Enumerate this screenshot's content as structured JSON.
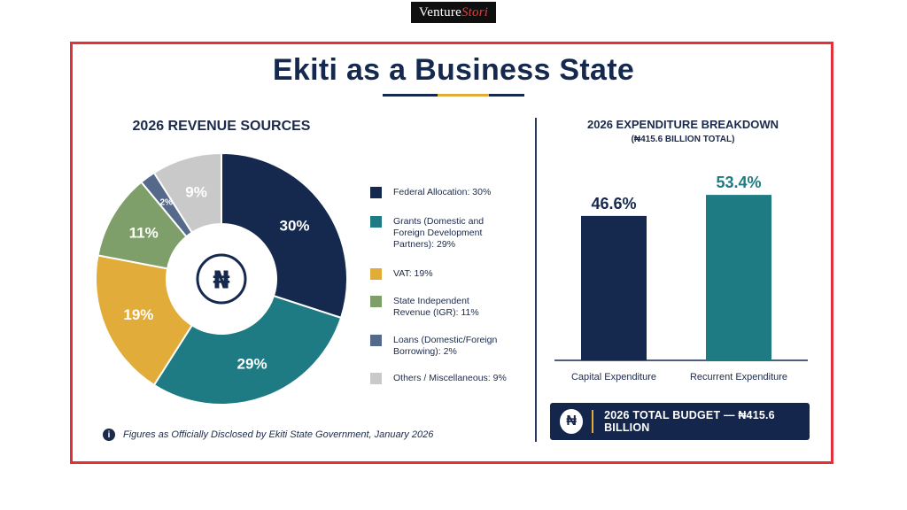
{
  "brand": {
    "name_plain": "Venture",
    "name_accent": "Stori"
  },
  "title": "Ekiti as a Business State",
  "colors": {
    "frame": "#e3313a",
    "navy": "#15294f",
    "teal": "#1e7b83",
    "gold": "#e2ac3a",
    "green": "#7f9f6a",
    "slate": "#556a8a",
    "grey": "#c9c9c9"
  },
  "revenue": {
    "heading": "2026 REVENUE SOURCES",
    "center_icon": "naira-icon",
    "center_symbol": "₦",
    "legend": [
      "Federal Allocation: 30%",
      "Grants (Domestic and Foreign Development Partners): 29%",
      "VAT: 19%",
      "State Independent Revenue (IGR): 11%",
      "Loans (Domestic/Foreign Borrowing): 2%",
      "Others / Miscellaneous: 9%"
    ]
  },
  "expenditure": {
    "heading": "2026 EXPENDITURE BREAKDOWN",
    "subheading": "(₦415.6 BILLION TOTAL)"
  },
  "note": {
    "icon": "info-icon",
    "icon_glyph": "i",
    "text": "Figures as Officially Disclosed by Ekiti State Government, January 2026"
  },
  "total_budget": {
    "icon": "naira-icon",
    "symbol": "₦",
    "text": "2026 TOTAL BUDGET — ₦415.6 BILLION"
  },
  "chart_data": [
    {
      "type": "pie",
      "title": "2026 REVENUE SOURCES",
      "donut": true,
      "categories": [
        "Federal Allocation",
        "Grants (Domestic and Foreign Development Partners)",
        "VAT",
        "State Independent Revenue (IGR)",
        "Loans (Domestic/Foreign Borrowing)",
        "Others / Miscellaneous"
      ],
      "values": [
        30,
        29,
        19,
        11,
        2,
        9
      ],
      "labels": [
        "30%",
        "29%",
        "19%",
        "11%",
        "2%",
        "9%"
      ],
      "colors": [
        "#15294f",
        "#1e7b83",
        "#e2ac3a",
        "#7f9f6a",
        "#556a8a",
        "#c9c9c9"
      ],
      "legend_position": "right"
    },
    {
      "type": "bar",
      "title": "2026 EXPENDITURE BREAKDOWN",
      "subtitle": "(₦415.6 BILLION TOTAL)",
      "categories": [
        "Capital Expenditure",
        "Recurrent Expenditure"
      ],
      "values": [
        46.6,
        53.4
      ],
      "labels": [
        "46.6%",
        "53.4%"
      ],
      "colors": [
        "#15294f",
        "#1e7b83"
      ],
      "ylim": [
        0,
        60
      ],
      "grid": false
    }
  ]
}
